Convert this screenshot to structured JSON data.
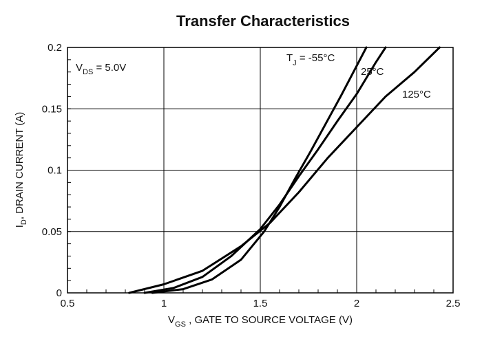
{
  "chart_data": {
    "type": "line",
    "title": "Transfer Characteristics",
    "xlabel": {
      "main": "V",
      "sub": "GS",
      "rest": " , GATE TO SOURCE VOLTAGE (V)"
    },
    "ylabel": {
      "main": "I",
      "sub": "D",
      "rest": ", DRAIN CURRENT (A)"
    },
    "annotation": {
      "main": "V",
      "sub": "DS",
      "rest": " = 5.0V"
    },
    "xlim": [
      0.5,
      2.5
    ],
    "ylim": [
      0,
      0.2
    ],
    "x_ticks": [
      "0.5",
      "1",
      "1.5",
      "2",
      "2.5"
    ],
    "y_ticks": [
      "0",
      "0.05",
      "0.1",
      "0.15",
      "0.2"
    ],
    "grid": true,
    "series": [
      {
        "name": "T = -55°C",
        "label_main": "T",
        "label_sub": "J",
        "label_rest": " = -55°C",
        "x": [
          0.94,
          1.1,
          1.25,
          1.4,
          1.52,
          1.6,
          1.68,
          1.76,
          1.84,
          1.92,
          2.0,
          2.05
        ],
        "y": [
          0.0,
          0.003,
          0.011,
          0.027,
          0.05,
          0.07,
          0.093,
          0.115,
          0.138,
          0.161,
          0.185,
          0.2
        ]
      },
      {
        "name": "25°C",
        "x": [
          0.9,
          1.05,
          1.2,
          1.35,
          1.5,
          1.6,
          1.7,
          1.8,
          1.9,
          2.0,
          2.1,
          2.15
        ],
        "y": [
          0.0,
          0.004,
          0.013,
          0.03,
          0.052,
          0.072,
          0.095,
          0.117,
          0.14,
          0.162,
          0.188,
          0.2
        ]
      },
      {
        "name": "125°C",
        "x": [
          0.82,
          1.0,
          1.2,
          1.4,
          1.55,
          1.7,
          1.85,
          2.0,
          2.15,
          2.3,
          2.43
        ],
        "y": [
          0.0,
          0.007,
          0.018,
          0.038,
          0.057,
          0.082,
          0.11,
          0.135,
          0.16,
          0.18,
          0.2
        ]
      }
    ]
  }
}
